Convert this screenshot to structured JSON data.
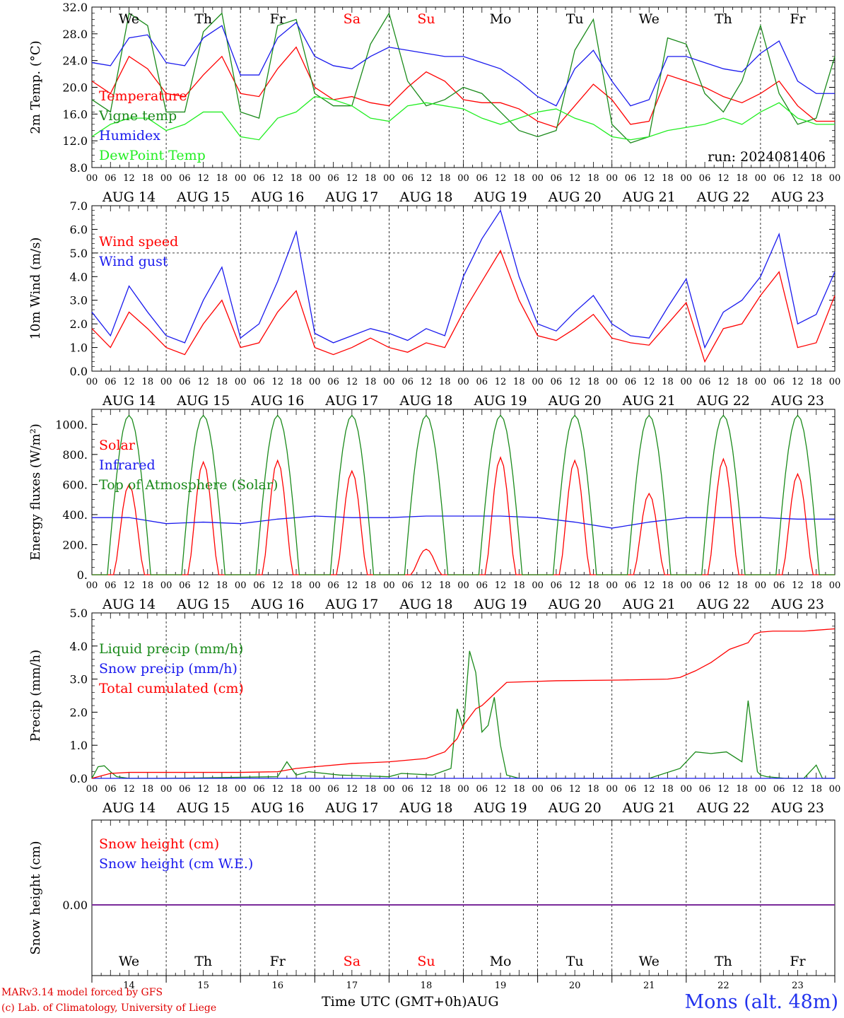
{
  "meta": {
    "credit_line1": "MARv3.14 model forced by GFS",
    "credit_line2": "(c) Lab. of Climatology, University of Liege",
    "station": "Mons (alt. 48m)",
    "x_axis_title": "Time UTC (GMT+0h)",
    "month_label": "AUG",
    "run_label": "run: 2024081406"
  },
  "days": [
    {
      "weekday": "We",
      "date": "AUG 14",
      "day_num": "14",
      "weekend": false
    },
    {
      "weekday": "Th",
      "date": "AUG 15",
      "day_num": "15",
      "weekend": false
    },
    {
      "weekday": "Fr",
      "date": "AUG 16",
      "day_num": "16",
      "weekend": false
    },
    {
      "weekday": "Sa",
      "date": "AUG 17",
      "day_num": "17",
      "weekend": true
    },
    {
      "weekday": "Su",
      "date": "AUG 18",
      "day_num": "18",
      "weekend": true
    },
    {
      "weekday": "Mo",
      "date": "AUG 19",
      "day_num": "19",
      "weekend": false
    },
    {
      "weekday": "Tu",
      "date": "AUG 20",
      "day_num": "20",
      "weekend": false
    },
    {
      "weekday": "We",
      "date": "AUG 21",
      "day_num": "21",
      "weekend": false
    },
    {
      "weekday": "Th",
      "date": "AUG 22",
      "day_num": "22",
      "weekend": false
    },
    {
      "weekday": "Fr",
      "date": "AUG 23",
      "day_num": "23",
      "weekend": false
    }
  ],
  "hour_ticks": [
    "00",
    "06",
    "12",
    "18"
  ],
  "colors": {
    "red": "#ff0000",
    "green": "#1a8a1a",
    "blue": "#1a1aee",
    "lightgreen": "#22ee22",
    "weekday_text": "#000000",
    "weekend_text": "#ff0000",
    "snow_line": "#7a2a9a"
  },
  "chart_data": [
    {
      "type": "line",
      "ylabel": "2m Temp. (°C)",
      "ylim": [
        8,
        34
      ],
      "yticks": [
        "8.0",
        "12.0",
        "16.0",
        "20.0",
        "24.0",
        "28.0",
        "32.0"
      ],
      "x_unit": "hours since AUG 14 00 UTC",
      "series": [
        {
          "name": "Temperature",
          "color": "red",
          "x": [
            0,
            6,
            12,
            18,
            24,
            30,
            36,
            42,
            48,
            54,
            60,
            66,
            72,
            78,
            84,
            90,
            96,
            102,
            108,
            114,
            120,
            126,
            132,
            138,
            144,
            150,
            156,
            162,
            168,
            174,
            180,
            186,
            192,
            198,
            204,
            210,
            216,
            222,
            228,
            234,
            240
          ],
          "y": [
            22,
            20,
            26,
            24,
            20,
            19.5,
            23,
            26,
            20,
            19.5,
            24,
            27.5,
            21,
            19,
            19.5,
            18.5,
            18,
            21,
            23.5,
            22,
            19,
            18.5,
            18.5,
            17.5,
            15.5,
            14.5,
            18,
            21.5,
            19,
            15,
            15.5,
            23,
            22,
            21,
            19.5,
            18.5,
            20,
            22,
            18,
            15.5,
            15.5
          ]
        },
        {
          "name": "Vigne temp",
          "color": "green",
          "x": [
            0,
            6,
            12,
            18,
            24,
            30,
            36,
            42,
            48,
            54,
            60,
            66,
            72,
            78,
            84,
            90,
            96,
            102,
            108,
            114,
            120,
            126,
            132,
            138,
            144,
            150,
            156,
            162,
            168,
            174,
            180,
            186,
            192,
            198,
            204,
            210,
            216,
            222,
            228,
            234,
            240
          ],
          "y": [
            19,
            17,
            33,
            31,
            17,
            17,
            30,
            33,
            17,
            16,
            31,
            32,
            20,
            18,
            18,
            28,
            33,
            22,
            18,
            19,
            21,
            20,
            17,
            14,
            13,
            14,
            27,
            32,
            15,
            12,
            13,
            29,
            28,
            20,
            17,
            22,
            31,
            20,
            15,
            16,
            26
          ]
        },
        {
          "name": "Humidex",
          "color": "blue",
          "x": [
            0,
            6,
            12,
            18,
            24,
            30,
            36,
            42,
            48,
            54,
            60,
            66,
            72,
            78,
            84,
            90,
            96,
            102,
            108,
            114,
            120,
            126,
            132,
            138,
            144,
            150,
            156,
            162,
            168,
            174,
            180,
            186,
            192,
            198,
            204,
            210,
            216,
            222,
            228,
            234,
            240
          ],
          "y": [
            25,
            24.5,
            29,
            29.5,
            25,
            24.5,
            29,
            31,
            23,
            23,
            29,
            31.5,
            26,
            24.5,
            24,
            26,
            27.5,
            27,
            26.5,
            26,
            26,
            25,
            24,
            22,
            19.5,
            18,
            24,
            27,
            22,
            18,
            19,
            26,
            26,
            25,
            24,
            23.5,
            26.5,
            28.5,
            22,
            20,
            20
          ]
        },
        {
          "name": "DewPoint Temp",
          "color": "lightgreen",
          "x": [
            0,
            6,
            12,
            18,
            24,
            30,
            36,
            42,
            48,
            54,
            60,
            66,
            72,
            78,
            84,
            90,
            96,
            102,
            108,
            114,
            120,
            126,
            132,
            138,
            144,
            150,
            156,
            162,
            168,
            174,
            180,
            186,
            192,
            198,
            204,
            210,
            216,
            222,
            228,
            234,
            240
          ],
          "y": [
            13,
            15,
            16,
            16,
            14,
            15,
            17,
            17,
            13,
            12.5,
            16,
            17,
            19.5,
            19,
            18,
            16,
            15.5,
            18,
            18.5,
            18,
            17.5,
            16,
            15,
            16,
            17,
            17.5,
            16,
            15,
            13,
            12.5,
            13,
            14,
            14.5,
            15,
            16,
            15,
            17,
            18.5,
            16,
            15,
            15
          ]
        }
      ]
    },
    {
      "type": "line",
      "ylabel": "10m Wind (m/s)",
      "ylim": [
        0,
        7
      ],
      "yticks": [
        "0.0",
        "1.0",
        "2.0",
        "3.0",
        "4.0",
        "5.0",
        "6.0",
        "7.0"
      ],
      "reference_line": 5,
      "series": [
        {
          "name": "Wind speed",
          "color": "red",
          "x": [
            0,
            6,
            12,
            18,
            24,
            30,
            36,
            42,
            48,
            54,
            60,
            66,
            72,
            78,
            84,
            90,
            96,
            102,
            108,
            114,
            120,
            126,
            132,
            138,
            144,
            150,
            156,
            162,
            168,
            174,
            180,
            186,
            192,
            198,
            204,
            210,
            216,
            222,
            228,
            234,
            240
          ],
          "y": [
            1.8,
            1.0,
            2.5,
            1.8,
            1.0,
            0.7,
            2.0,
            3.0,
            1.0,
            1.2,
            2.5,
            3.4,
            1.0,
            0.7,
            1.0,
            1.4,
            1.0,
            0.8,
            1.2,
            1.0,
            2.5,
            3.8,
            5.1,
            3.0,
            1.5,
            1.3,
            1.8,
            2.4,
            1.4,
            1.2,
            1.1,
            2.0,
            2.9,
            0.4,
            1.8,
            2.0,
            3.2,
            4.2,
            1.0,
            1.2,
            3.2
          ]
        },
        {
          "name": "Wind gust",
          "color": "blue",
          "x": [
            0,
            6,
            12,
            18,
            24,
            30,
            36,
            42,
            48,
            54,
            60,
            66,
            72,
            78,
            84,
            90,
            96,
            102,
            108,
            114,
            120,
            126,
            132,
            138,
            144,
            150,
            156,
            162,
            168,
            174,
            180,
            186,
            192,
            198,
            204,
            210,
            216,
            222,
            228,
            234,
            240
          ],
          "y": [
            2.5,
            1.5,
            3.6,
            2.5,
            1.5,
            1.2,
            3.0,
            4.4,
            1.4,
            2.0,
            3.8,
            5.9,
            1.6,
            1.2,
            1.5,
            1.8,
            1.6,
            1.3,
            1.8,
            1.5,
            4.0,
            5.6,
            6.8,
            4.0,
            2.0,
            1.7,
            2.5,
            3.2,
            2.0,
            1.5,
            1.4,
            2.7,
            3.9,
            1.0,
            2.5,
            3.0,
            4.0,
            5.8,
            2.0,
            2.4,
            4.2
          ]
        }
      ]
    },
    {
      "type": "line",
      "ylabel": "Energy fluxes (W/m²)",
      "ylim": [
        0,
        1100
      ],
      "yticks": [
        "0.",
        "200.",
        "400.",
        "600.",
        "800.",
        "1000."
      ],
      "series": [
        {
          "name": "Solar",
          "color": "red",
          "peaks": [
            600,
            750,
            760,
            690,
            170,
            780,
            760,
            540,
            770,
            670
          ]
        },
        {
          "name": "Infrared",
          "color": "blue",
          "x": [
            0,
            12,
            24,
            36,
            48,
            60,
            72,
            84,
            96,
            108,
            120,
            132,
            144,
            156,
            168,
            180,
            192,
            204,
            216,
            228,
            240
          ],
          "y": [
            380,
            380,
            340,
            350,
            340,
            370,
            390,
            380,
            380,
            390,
            390,
            390,
            380,
            350,
            310,
            350,
            380,
            380,
            380,
            370,
            370
          ]
        },
        {
          "name": "Top of Atmosphere (Solar)",
          "color": "green",
          "peak": 1060
        }
      ]
    },
    {
      "type": "line",
      "ylabel": "Precip (mm/h)",
      "ylim": [
        0,
        5
      ],
      "yticks": [
        "0.0",
        "1.0",
        "2.0",
        "3.0",
        "4.0",
        "5.0"
      ],
      "series": [
        {
          "name": "Liquid precip (mm/h)",
          "color": "green",
          "x": [
            0,
            2,
            4,
            6,
            8,
            12,
            24,
            60,
            63,
            66,
            70,
            80,
            96,
            100,
            110,
            116,
            118,
            120,
            122,
            124,
            126,
            128,
            130,
            132,
            134,
            136,
            138,
            140,
            150,
            180,
            190,
            195,
            200,
            205,
            210,
            212,
            215,
            216,
            218,
            224,
            230,
            234,
            236,
            240
          ],
          "y": [
            0,
            0.35,
            0.38,
            0.2,
            0.05,
            0,
            0,
            0.05,
            0.5,
            0.1,
            0.2,
            0.1,
            0.05,
            0.15,
            0.1,
            0.3,
            2.1,
            1.5,
            3.85,
            3.2,
            1.4,
            1.6,
            2.45,
            1.0,
            0.1,
            0.05,
            0,
            0,
            0,
            0,
            0.3,
            0.8,
            0.75,
            0.8,
            0.5,
            2.35,
            0.2,
            0.1,
            0.05,
            0,
            0,
            0.4,
            0,
            0
          ]
        },
        {
          "name": "Snow precip (mm/h)",
          "color": "blue",
          "x": [
            0,
            240
          ],
          "y": [
            0,
            0
          ]
        },
        {
          "name": "Total cumulated (cm)",
          "color": "red",
          "x": [
            0,
            6,
            12,
            24,
            48,
            60,
            66,
            72,
            84,
            96,
            108,
            114,
            118,
            120,
            124,
            126,
            130,
            134,
            150,
            170,
            186,
            190,
            195,
            200,
            206,
            212,
            214,
            216,
            220,
            230,
            240
          ],
          "y": [
            0,
            0.15,
            0.18,
            0.18,
            0.18,
            0.2,
            0.3,
            0.35,
            0.45,
            0.5,
            0.6,
            0.8,
            1.2,
            1.6,
            2.1,
            2.2,
            2.55,
            2.9,
            2.95,
            2.97,
            3.0,
            3.05,
            3.25,
            3.5,
            3.9,
            4.1,
            4.35,
            4.42,
            4.45,
            4.45,
            4.52
          ]
        }
      ]
    },
    {
      "type": "line",
      "ylabel": "Snow height (cm)",
      "yticks": [
        "0.00"
      ],
      "series": [
        {
          "name": "Snow height (cm)",
          "color": "red",
          "x": [
            0,
            240
          ],
          "y": [
            0,
            0
          ]
        },
        {
          "name": "Snow height (cm W.E.)",
          "color": "blue",
          "x": [
            0,
            240
          ],
          "y": [
            0,
            0
          ]
        }
      ]
    }
  ]
}
